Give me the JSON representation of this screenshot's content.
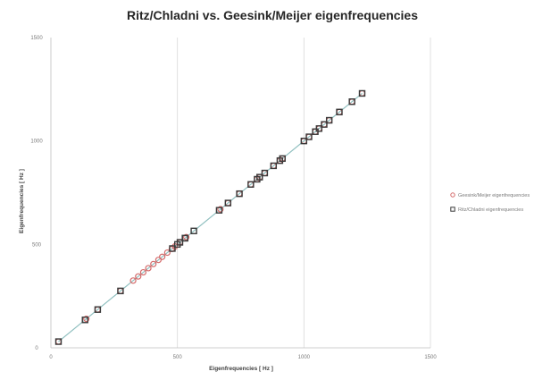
{
  "chart_data": {
    "type": "scatter",
    "title": "Ritz/Chladni  vs. Geesink/Meijer eigenfrequencies",
    "xlabel": "Eigenfrequencies [ Hz ]",
    "ylabel": "Eigenfrequencies [ Hz ]",
    "xlim": [
      0,
      1500
    ],
    "ylim": [
      0,
      1500
    ],
    "xticks": [
      0,
      500,
      1000,
      1500
    ],
    "xtick_labels": [
      "0",
      "500",
      "1000",
      "1500"
    ],
    "yticks": [
      0,
      500,
      1000,
      1500
    ],
    "ytick_labels": [
      "0",
      "500",
      "1000",
      "1500"
    ],
    "grid": "vertical",
    "legend_position": "right",
    "series": [
      {
        "name": "Geesink/Meijer eigenfrequencies",
        "color": "#d46a6a",
        "marker": "circle",
        "points": [
          [
            30,
            30
          ],
          [
            140,
            140
          ],
          [
            185,
            185
          ],
          [
            275,
            275
          ],
          [
            325,
            325
          ],
          [
            345,
            345
          ],
          [
            365,
            365
          ],
          [
            385,
            385
          ],
          [
            405,
            405
          ],
          [
            425,
            425
          ],
          [
            440,
            440
          ],
          [
            460,
            460
          ],
          [
            478,
            478
          ],
          [
            490,
            490
          ],
          [
            510,
            510
          ],
          [
            535,
            535
          ],
          [
            670,
            670
          ],
          [
            700,
            700
          ],
          [
            745,
            745
          ],
          [
            790,
            790
          ],
          [
            815,
            815
          ],
          [
            825,
            825
          ],
          [
            845,
            845
          ],
          [
            880,
            880
          ],
          [
            905,
            905
          ],
          [
            915,
            915
          ],
          [
            1000,
            1000
          ],
          [
            1020,
            1020
          ],
          [
            1045,
            1045
          ],
          [
            1060,
            1060
          ],
          [
            1080,
            1080
          ],
          [
            1100,
            1100
          ],
          [
            1140,
            1140
          ],
          [
            1190,
            1190
          ],
          [
            1230,
            1230
          ]
        ]
      },
      {
        "name": "Ritz/Chladni eigenfrequencies",
        "color": "#3a3a3a",
        "marker": "square",
        "points": [
          [
            30,
            30
          ],
          [
            135,
            135
          ],
          [
            185,
            185
          ],
          [
            275,
            275
          ],
          [
            480,
            480
          ],
          [
            500,
            500
          ],
          [
            510,
            510
          ],
          [
            530,
            530
          ],
          [
            530,
            530
          ],
          [
            565,
            565
          ],
          [
            665,
            665
          ],
          [
            700,
            700
          ],
          [
            745,
            745
          ],
          [
            790,
            790
          ],
          [
            815,
            815
          ],
          [
            825,
            825
          ],
          [
            845,
            845
          ],
          [
            880,
            880
          ],
          [
            905,
            905
          ],
          [
            915,
            915
          ],
          [
            1000,
            1000
          ],
          [
            1020,
            1020
          ],
          [
            1045,
            1045
          ],
          [
            1060,
            1060
          ],
          [
            1080,
            1080
          ],
          [
            1100,
            1100
          ],
          [
            1140,
            1140
          ],
          [
            1190,
            1190
          ],
          [
            1230,
            1230
          ]
        ]
      }
    ],
    "trendline_color": "#8fbfbf"
  }
}
